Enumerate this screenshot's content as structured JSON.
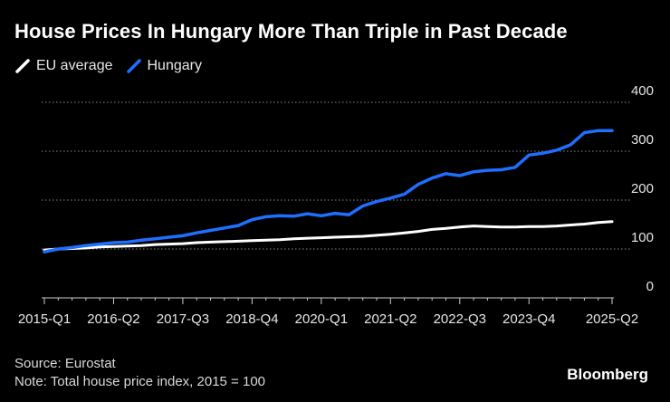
{
  "title": "House Prices In Hungary More Than Triple in Past Decade",
  "source": "Source: Eurostat",
  "note": "Note: Total house price index, 2015 = 100",
  "brand": "Bloomberg",
  "colors": {
    "eu": "#ffffff",
    "hungary": "#1f6fff",
    "grid": "#8a8a8a",
    "axis": "#cccccc"
  },
  "chart_data": {
    "type": "line",
    "title": "House Prices In Hungary More Than Triple in Past Decade",
    "xlabel": "",
    "ylabel": "",
    "ylim": [
      0,
      400
    ],
    "yticks": [
      0,
      100,
      200,
      300,
      400
    ],
    "grid": true,
    "legend_position": "top-left",
    "x_tick_labels": [
      "2015-Q1",
      "2016-Q2",
      "2017-Q3",
      "2018-Q4",
      "2020-Q1",
      "2021-Q2",
      "2022-Q3",
      "2023-Q4",
      "2025-Q2"
    ],
    "x": [
      "2015-Q1",
      "2015-Q2",
      "2015-Q3",
      "2015-Q4",
      "2016-Q1",
      "2016-Q2",
      "2016-Q3",
      "2016-Q4",
      "2017-Q1",
      "2017-Q2",
      "2017-Q3",
      "2017-Q4",
      "2018-Q1",
      "2018-Q2",
      "2018-Q3",
      "2018-Q4",
      "2019-Q1",
      "2019-Q2",
      "2019-Q3",
      "2019-Q4",
      "2020-Q1",
      "2020-Q2",
      "2020-Q3",
      "2020-Q4",
      "2021-Q1",
      "2021-Q2",
      "2021-Q3",
      "2021-Q4",
      "2022-Q1",
      "2022-Q2",
      "2022-Q3",
      "2022-Q4",
      "2023-Q1",
      "2023-Q2",
      "2023-Q3",
      "2023-Q4",
      "2024-Q1",
      "2024-Q2",
      "2024-Q3",
      "2024-Q4",
      "2025-Q1",
      "2025-Q2"
    ],
    "series": [
      {
        "name": "EU average",
        "color": "#ffffff",
        "values": [
          98,
          100,
          101,
          102,
          104,
          105,
          106,
          107,
          109,
          110,
          111,
          113,
          114,
          115,
          116,
          117,
          118,
          119,
          121,
          122,
          123,
          124,
          125,
          126,
          128,
          130,
          133,
          136,
          140,
          142,
          145,
          147,
          146,
          145,
          145,
          146,
          146,
          147,
          149,
          151,
          154,
          156
        ]
      },
      {
        "name": "Hungary",
        "color": "#1f6fff",
        "values": [
          94,
          100,
          103,
          107,
          110,
          113,
          114,
          118,
          121,
          124,
          127,
          133,
          138,
          143,
          148,
          160,
          166,
          168,
          167,
          172,
          168,
          173,
          170,
          188,
          197,
          204,
          212,
          232,
          245,
          254,
          250,
          258,
          261,
          262,
          267,
          292,
          296,
          302,
          313,
          338,
          342,
          342
        ]
      }
    ]
  }
}
